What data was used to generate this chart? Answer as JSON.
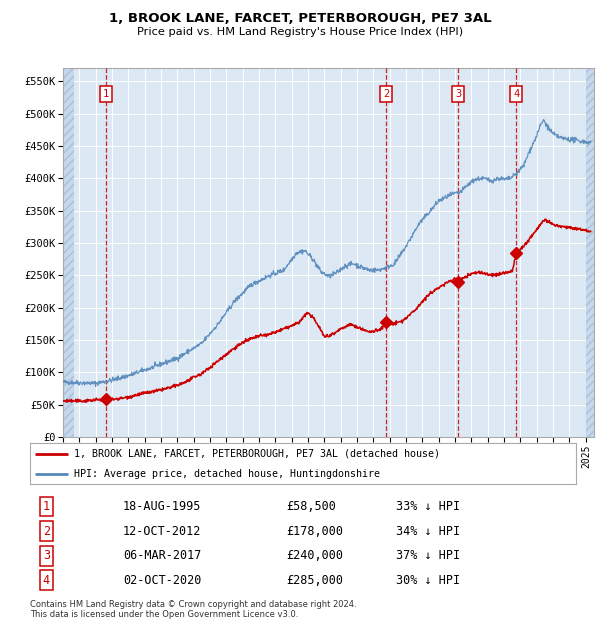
{
  "title1": "1, BROOK LANE, FARCET, PETERBOROUGH, PE7 3AL",
  "title2": "Price paid vs. HM Land Registry's House Price Index (HPI)",
  "ylabel_ticks": [
    "£0",
    "£50K",
    "£100K",
    "£150K",
    "£200K",
    "£250K",
    "£300K",
    "£350K",
    "£400K",
    "£450K",
    "£500K",
    "£550K"
  ],
  "ylabel_values": [
    0,
    50000,
    100000,
    150000,
    200000,
    250000,
    300000,
    350000,
    400000,
    450000,
    500000,
    550000
  ],
  "xlim": [
    1993.0,
    2025.5
  ],
  "ylim": [
    0,
    570000
  ],
  "bg_color": "#dce9f5",
  "grid_color": "#ffffff",
  "sale_dates": [
    1995.63,
    2012.78,
    2017.18,
    2020.75
  ],
  "sale_prices": [
    58500,
    178000,
    240000,
    285000
  ],
  "sale_labels": [
    "1",
    "2",
    "3",
    "4"
  ],
  "legend_red_label": "1, BROOK LANE, FARCET, PETERBOROUGH, PE7 3AL (detached house)",
  "legend_blue_label": "HPI: Average price, detached house, Huntingdonshire",
  "table_rows": [
    [
      "1",
      "18-AUG-1995",
      "£58,500",
      "33% ↓ HPI"
    ],
    [
      "2",
      "12-OCT-2012",
      "£178,000",
      "34% ↓ HPI"
    ],
    [
      "3",
      "06-MAR-2017",
      "£240,000",
      "37% ↓ HPI"
    ],
    [
      "4",
      "02-OCT-2020",
      "£285,000",
      "30% ↓ HPI"
    ]
  ],
  "footer": "Contains HM Land Registry data © Crown copyright and database right 2024.\nThis data is licensed under the Open Government Licence v3.0.",
  "red_color": "#cc0000",
  "blue_color": "#5588bb"
}
